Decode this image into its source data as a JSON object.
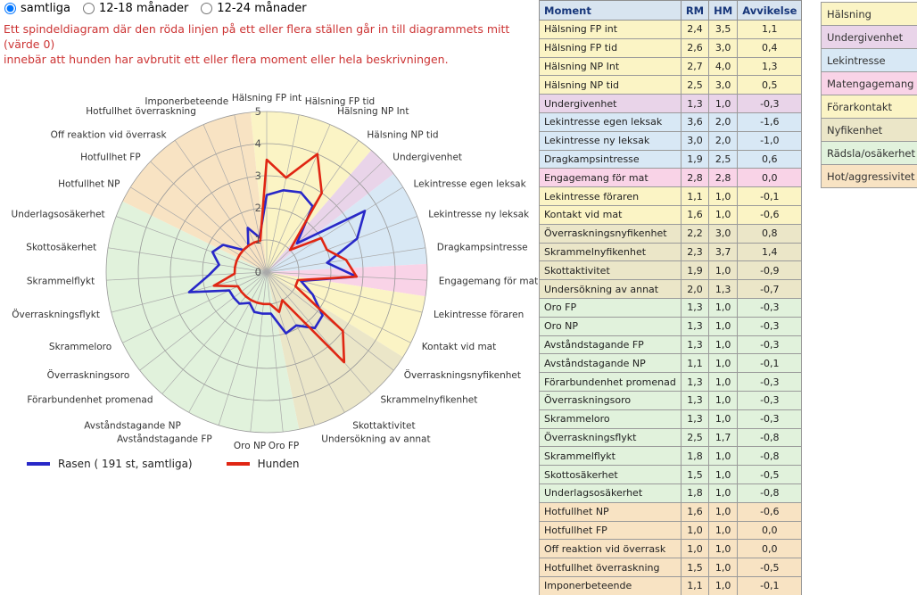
{
  "filters": {
    "options": [
      {
        "key": "samtliga",
        "label": "samtliga",
        "selected": true
      },
      {
        "key": "12-18-manader",
        "label": "12-18 månader",
        "selected": false
      },
      {
        "key": "12-24-manader",
        "label": "12-24 månader",
        "selected": false
      }
    ]
  },
  "notice": {
    "line1": "Ett spindeldiagram där den röda linjen på ett eller flera ställen går in till diagrammets mitt (värde 0)",
    "line2": "innebär att hunden har avbrutit ett eller flera moment eller hela beskrivningen.",
    "color": "#cc3333"
  },
  "chart_data": {
    "type": "radar",
    "title": "",
    "rmax": 5,
    "ticks": [
      0,
      1,
      2,
      3,
      4,
      5
    ],
    "grid_ring_color": "#999999",
    "spoke_color": "#aaaaaa",
    "axes": [
      "Hälsning FP int",
      "Hälsning FP tid",
      "Hälsning NP Int",
      "Hälsning NP tid",
      "Undergivenhet",
      "Lekintresse egen leksak",
      "Lekintresse ny leksak",
      "Dragkampsintresse",
      "Engagemang för mat",
      "Lekintresse föraren",
      "Kontakt vid mat",
      "Överraskningsnyfikenhet",
      "Skrammelnyfikenhet",
      "Skottaktivitet",
      "Undersökning av annat",
      "Oro FP",
      "Oro NP",
      "Avståndstagande FP",
      "Avståndstagande NP",
      "Förarbundenhet promenad",
      "Överraskningsoro",
      "Skrammeloro",
      "Överraskningsflykt",
      "Skrammelflykt",
      "Skottosäkerhet",
      "Underlagsosäkerhet",
      "Hotfullhet NP",
      "Hotfullhet FP",
      "Off reaktion vid överrask",
      "Hotfullhet överraskning",
      "Imponerbeteende"
    ],
    "series": [
      {
        "name": "Rasen ( 191 st, samtliga)",
        "color": "#2828c8",
        "values": [
          2.4,
          2.6,
          2.7,
          2.5,
          1.3,
          3.6,
          3.0,
          1.9,
          2.8,
          1.1,
          1.6,
          2.2,
          2.3,
          1.9,
          2.0,
          1.3,
          1.3,
          1.3,
          1.1,
          1.3,
          1.3,
          1.3,
          2.5,
          1.8,
          1.5,
          1.8,
          1.6,
          1.0,
          1.0,
          1.5,
          1.1
        ]
      },
      {
        "name": "Hunden",
        "color": "#e02613",
        "values": [
          3.5,
          3.0,
          4.0,
          3.0,
          1.0,
          2.0,
          2.0,
          2.5,
          2.8,
          1.0,
          1.0,
          3.0,
          3.7,
          1.0,
          1.3,
          1.0,
          1.0,
          1.0,
          1.0,
          1.0,
          1.0,
          1.0,
          1.7,
          1.0,
          1.0,
          1.0,
          1.0,
          1.0,
          1.0,
          1.0,
          1.0
        ]
      }
    ],
    "categories": [
      {
        "name": "Hälsning",
        "key": "halsning",
        "from": 0,
        "to": 3
      },
      {
        "name": "Undergivenhet",
        "key": "undergivenhet",
        "from": 4,
        "to": 4
      },
      {
        "name": "Lekintresse",
        "key": "lekintresse",
        "from": 5,
        "to": 7
      },
      {
        "name": "Matengagemang",
        "key": "matengagemang",
        "from": 8,
        "to": 8
      },
      {
        "name": "Förarkontakt",
        "key": "forarkontakt",
        "from": 9,
        "to": 10
      },
      {
        "name": "Nyfikenhet",
        "key": "nyfikenhet",
        "from": 11,
        "to": 14
      },
      {
        "name": "Rädsla/osäkerhet",
        "key": "radsla",
        "from": 15,
        "to": 25
      },
      {
        "name": "Hot/aggressivitet",
        "key": "hot",
        "from": 26,
        "to": 30
      }
    ]
  },
  "category_colors": {
    "halsning": "#fbf4c5",
    "undergivenhet": "#e9d4e9",
    "lekintresse": "#d8e8f5",
    "matengagemang": "#f9d3e7",
    "forarkontakt": "#fbf4c5",
    "nyfikenhet": "#ebe6c8",
    "radsla": "#e1f2dc",
    "hot": "#f8e3c3"
  },
  "table": {
    "headers": [
      "Moment",
      "RM",
      "HM",
      "Avvikelse"
    ],
    "header_bg": "#d8e4f0",
    "header_text_color": "#17367a",
    "rows": [
      {
        "moment": "Hälsning FP int",
        "rm": "2,4",
        "hm": "3,5",
        "avvikelse": "1,1",
        "category": "halsning"
      },
      {
        "moment": "Hälsning FP tid",
        "rm": "2,6",
        "hm": "3,0",
        "avvikelse": "0,4",
        "category": "halsning"
      },
      {
        "moment": "Hälsning NP Int",
        "rm": "2,7",
        "hm": "4,0",
        "avvikelse": "1,3",
        "category": "halsning"
      },
      {
        "moment": "Hälsning NP tid",
        "rm": "2,5",
        "hm": "3,0",
        "avvikelse": "0,5",
        "category": "halsning"
      },
      {
        "moment": "Undergivenhet",
        "rm": "1,3",
        "hm": "1,0",
        "avvikelse": "-0,3",
        "category": "undergivenhet"
      },
      {
        "moment": "Lekintresse egen leksak",
        "rm": "3,6",
        "hm": "2,0",
        "avvikelse": "-1,6",
        "category": "lekintresse"
      },
      {
        "moment": "Lekintresse ny leksak",
        "rm": "3,0",
        "hm": "2,0",
        "avvikelse": "-1,0",
        "category": "lekintresse"
      },
      {
        "moment": "Dragkampsintresse",
        "rm": "1,9",
        "hm": "2,5",
        "avvikelse": "0,6",
        "category": "lekintresse"
      },
      {
        "moment": "Engagemang för mat",
        "rm": "2,8",
        "hm": "2,8",
        "avvikelse": "0,0",
        "category": "matengagemang"
      },
      {
        "moment": "Lekintresse föraren",
        "rm": "1,1",
        "hm": "1,0",
        "avvikelse": "-0,1",
        "category": "forarkontakt"
      },
      {
        "moment": "Kontakt vid mat",
        "rm": "1,6",
        "hm": "1,0",
        "avvikelse": "-0,6",
        "category": "forarkontakt"
      },
      {
        "moment": "Överraskningsnyfikenhet",
        "rm": "2,2",
        "hm": "3,0",
        "avvikelse": "0,8",
        "category": "nyfikenhet"
      },
      {
        "moment": "Skrammelnyfikenhet",
        "rm": "2,3",
        "hm": "3,7",
        "avvikelse": "1,4",
        "category": "nyfikenhet"
      },
      {
        "moment": "Skottaktivitet",
        "rm": "1,9",
        "hm": "1,0",
        "avvikelse": "-0,9",
        "category": "nyfikenhet"
      },
      {
        "moment": "Undersökning av annat",
        "rm": "2,0",
        "hm": "1,3",
        "avvikelse": "-0,7",
        "category": "nyfikenhet"
      },
      {
        "moment": "Oro FP",
        "rm": "1,3",
        "hm": "1,0",
        "avvikelse": "-0,3",
        "category": "radsla"
      },
      {
        "moment": "Oro NP",
        "rm": "1,3",
        "hm": "1,0",
        "avvikelse": "-0,3",
        "category": "radsla"
      },
      {
        "moment": "Avståndstagande FP",
        "rm": "1,3",
        "hm": "1,0",
        "avvikelse": "-0,3",
        "category": "radsla"
      },
      {
        "moment": "Avståndstagande NP",
        "rm": "1,1",
        "hm": "1,0",
        "avvikelse": "-0,1",
        "category": "radsla"
      },
      {
        "moment": "Förarbundenhet promenad",
        "rm": "1,3",
        "hm": "1,0",
        "avvikelse": "-0,3",
        "category": "radsla"
      },
      {
        "moment": "Överraskningsoro",
        "rm": "1,3",
        "hm": "1,0",
        "avvikelse": "-0,3",
        "category": "radsla"
      },
      {
        "moment": "Skrammeloro",
        "rm": "1,3",
        "hm": "1,0",
        "avvikelse": "-0,3",
        "category": "radsla"
      },
      {
        "moment": "Överraskningsflykt",
        "rm": "2,5",
        "hm": "1,7",
        "avvikelse": "-0,8",
        "category": "radsla"
      },
      {
        "moment": "Skrammelflykt",
        "rm": "1,8",
        "hm": "1,0",
        "avvikelse": "-0,8",
        "category": "radsla"
      },
      {
        "moment": "Skottosäkerhet",
        "rm": "1,5",
        "hm": "1,0",
        "avvikelse": "-0,5",
        "category": "radsla"
      },
      {
        "moment": "Underlagsosäkerhet",
        "rm": "1,8",
        "hm": "1,0",
        "avvikelse": "-0,8",
        "category": "radsla"
      },
      {
        "moment": "Hotfullhet NP",
        "rm": "1,6",
        "hm": "1,0",
        "avvikelse": "-0,6",
        "category": "hot"
      },
      {
        "moment": "Hotfullhet FP",
        "rm": "1,0",
        "hm": "1,0",
        "avvikelse": "0,0",
        "category": "hot"
      },
      {
        "moment": "Off reaktion vid överrask",
        "rm": "1,0",
        "hm": "1,0",
        "avvikelse": "0,0",
        "category": "hot"
      },
      {
        "moment": "Hotfullhet överraskning",
        "rm": "1,5",
        "hm": "1,0",
        "avvikelse": "-0,5",
        "category": "hot"
      },
      {
        "moment": "Imponerbeteende",
        "rm": "1,1",
        "hm": "1,0",
        "avvikelse": "-0,1",
        "category": "hot"
      }
    ]
  },
  "legend_panel": {
    "items": [
      {
        "label": "Hälsning",
        "category": "halsning"
      },
      {
        "label": "Undergivenhet",
        "category": "undergivenhet"
      },
      {
        "label": "Lekintresse",
        "category": "lekintresse"
      },
      {
        "label": "Matengagemang",
        "category": "matengagemang"
      },
      {
        "label": "Förarkontakt",
        "category": "forarkontakt"
      },
      {
        "label": "Nyfikenhet",
        "category": "nyfikenhet"
      },
      {
        "label": "Rädsla/osäkerhet",
        "category": "radsla"
      },
      {
        "label": "Hot/aggressivitet",
        "category": "hot"
      }
    ]
  }
}
